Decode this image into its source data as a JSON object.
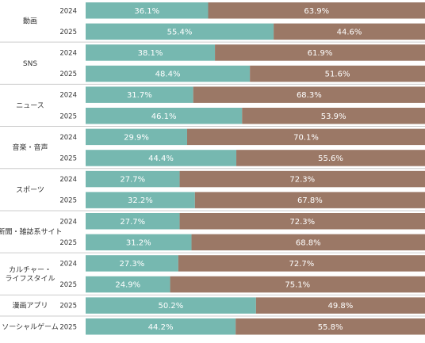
{
  "colors": {
    "series_a": "#76b8b0",
    "series_b": "#9b7866",
    "separator": "#cccccc"
  },
  "chart_data": {
    "type": "bar",
    "orientation": "horizontal",
    "stacked": true,
    "normalized": true,
    "xlim": [
      0,
      100
    ],
    "unit": "%",
    "series": [
      {
        "color": "#76b8b0"
      },
      {
        "color": "#9b7866"
      }
    ],
    "groups": [
      {
        "category": "動画",
        "rows": [
          {
            "year": "2024",
            "values": [
              36.1,
              63.9
            ]
          },
          {
            "year": "2025",
            "values": [
              55.4,
              44.6
            ]
          }
        ]
      },
      {
        "category": "SNS",
        "rows": [
          {
            "year": "2024",
            "values": [
              38.1,
              61.9
            ]
          },
          {
            "year": "2025",
            "values": [
              48.4,
              51.6
            ]
          }
        ]
      },
      {
        "category": "ニュース",
        "rows": [
          {
            "year": "2024",
            "values": [
              31.7,
              68.3
            ]
          },
          {
            "year": "2025",
            "values": [
              46.1,
              53.9
            ]
          }
        ]
      },
      {
        "category": "音楽・音声",
        "rows": [
          {
            "year": "2024",
            "values": [
              29.9,
              70.1
            ]
          },
          {
            "year": "2025",
            "values": [
              44.4,
              55.6
            ]
          }
        ]
      },
      {
        "category": "スポーツ",
        "rows": [
          {
            "year": "2024",
            "values": [
              27.7,
              72.3
            ]
          },
          {
            "year": "2025",
            "values": [
              32.2,
              67.8
            ]
          }
        ]
      },
      {
        "category": "新聞・雑誌系サイト",
        "rows": [
          {
            "year": "2024",
            "values": [
              27.7,
              72.3
            ]
          },
          {
            "year": "2025",
            "values": [
              31.2,
              68.8
            ]
          }
        ]
      },
      {
        "category": "カルチャー・\nライフスタイル",
        "rows": [
          {
            "year": "2024",
            "values": [
              27.3,
              72.7
            ]
          },
          {
            "year": "2025",
            "values": [
              24.9,
              75.1
            ]
          }
        ]
      },
      {
        "category": "漫画アプリ",
        "rows": [
          {
            "year": "2025",
            "values": [
              50.2,
              49.8
            ]
          }
        ]
      },
      {
        "category": "ソーシャルゲーム",
        "rows": [
          {
            "year": "2025",
            "values": [
              44.2,
              55.8
            ]
          }
        ]
      }
    ]
  }
}
